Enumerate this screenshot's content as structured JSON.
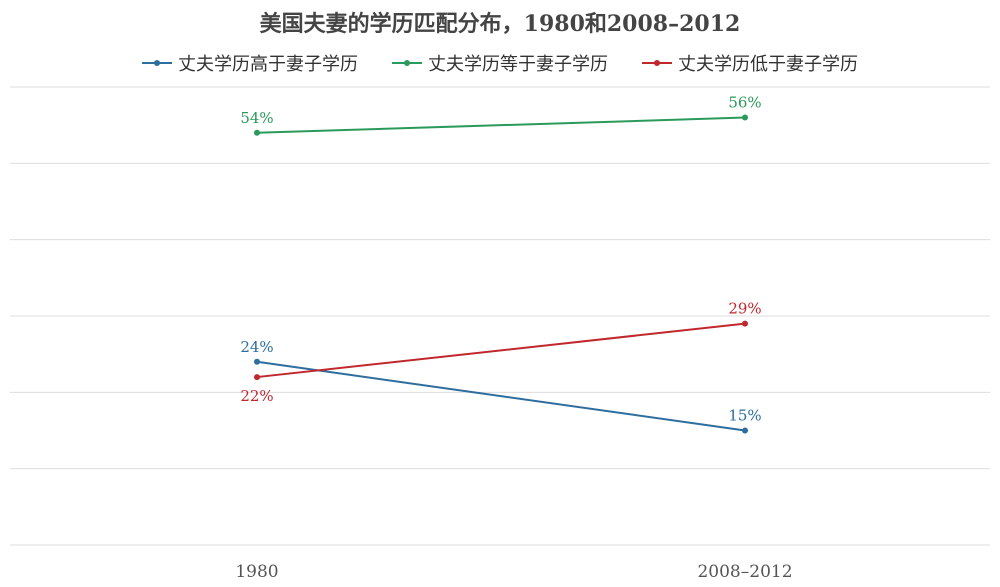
{
  "chart_data": {
    "type": "line",
    "title": "美国夫妻的学历匹配分布，1980和2008–2012",
    "categories": [
      "1980",
      "2008–2012"
    ],
    "series": [
      {
        "name": "丈夫学历高于妻子学历",
        "values": [
          24,
          15
        ],
        "labels": [
          "24%",
          "15%"
        ],
        "color": "#2e6e9e"
      },
      {
        "name": "丈夫学历等于妻子学历",
        "values": [
          54,
          56
        ],
        "labels": [
          "54%",
          "56%"
        ],
        "color": "#2a9a5a"
      },
      {
        "name": "丈夫学历低于妻子学历",
        "values": [
          22,
          29
        ],
        "labels": [
          "22%",
          "29%"
        ],
        "color": "#c0282d"
      }
    ],
    "ylim": [
      0,
      60
    ],
    "grid": true,
    "legend_position": "top"
  }
}
